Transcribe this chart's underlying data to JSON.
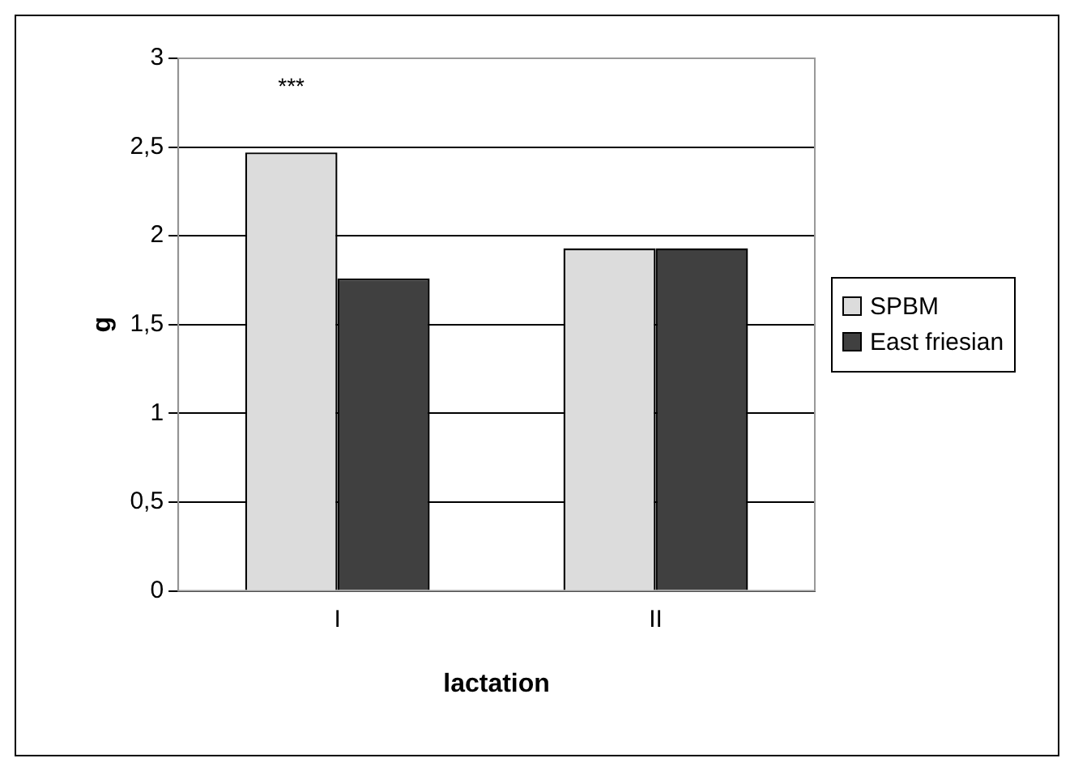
{
  "chart_data": {
    "type": "bar",
    "xlabel": "lactation",
    "ylabel": "g",
    "categories": [
      "I",
      "II"
    ],
    "series": [
      {
        "name": "SPBM",
        "color": "#dcdcdc",
        "values": [
          2.47,
          1.93
        ]
      },
      {
        "name": "East friesian",
        "color": "#404040",
        "values": [
          1.76,
          1.93
        ]
      }
    ],
    "ylim": [
      0,
      3
    ],
    "yticks": [
      0,
      {
        "value": 0.5,
        "label": "0,5"
      },
      1,
      {
        "value": 1.5,
        "label": "1,5"
      },
      2,
      {
        "value": 2.5,
        "label": "2,5"
      },
      3
    ],
    "grid": "y",
    "legend": "right",
    "annotations": [
      "***"
    ]
  }
}
